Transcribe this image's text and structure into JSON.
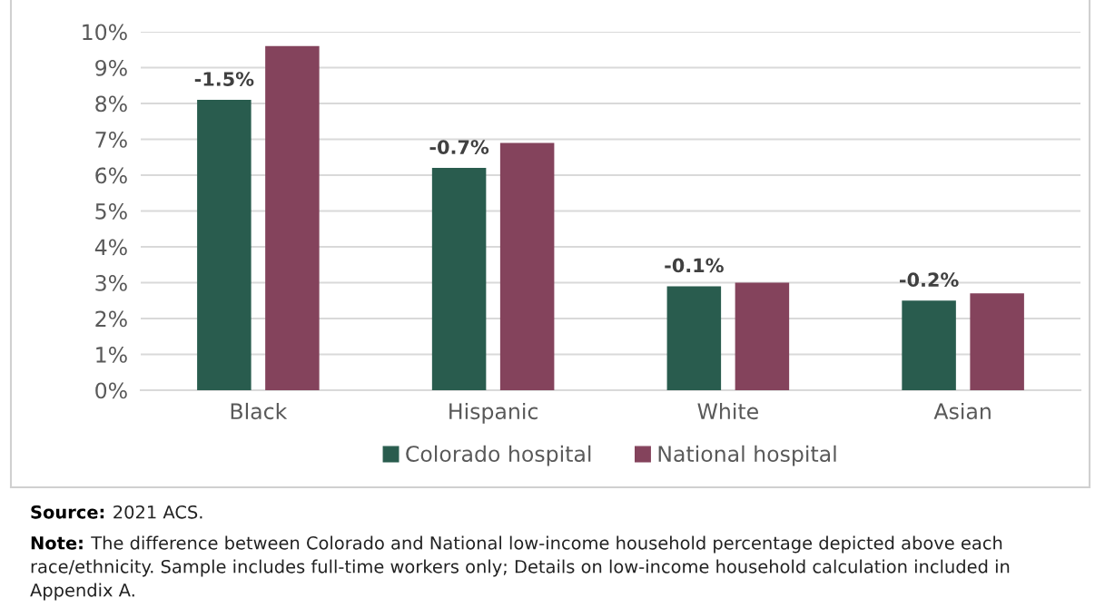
{
  "chart_data": {
    "type": "bar",
    "categories": [
      "Black",
      "Hispanic",
      "White",
      "Asian"
    ],
    "series": [
      {
        "name": "Colorado hospital",
        "color": "#295c4e",
        "values": [
          8.1,
          6.2,
          2.9,
          2.5
        ]
      },
      {
        "name": "National hospital",
        "color": "#84435c",
        "values": [
          9.6,
          6.9,
          3.0,
          2.7
        ]
      }
    ],
    "ylim": [
      0,
      10
    ],
    "yticks": [
      {
        "value": 0,
        "label": "0%"
      },
      {
        "value": 1,
        "label": "1%"
      },
      {
        "value": 2,
        "label": "2%"
      },
      {
        "value": 3,
        "label": "3%"
      },
      {
        "value": 4,
        "label": "4%"
      },
      {
        "value": 5,
        "label": "5%"
      },
      {
        "value": 6,
        "label": "6%"
      },
      {
        "value": 7,
        "label": "7%"
      },
      {
        "value": 8,
        "label": "8%"
      },
      {
        "value": 9,
        "label": "9%"
      },
      {
        "value": 10,
        "label": "10%"
      }
    ],
    "grid": "y",
    "legend": "bottom",
    "annotations": [
      "-1.5%",
      "-0.7%",
      "-0.1%",
      "-0.2%",
      "Source:  2021 ACS.",
      "Note: The difference between Colorado and National low-income household percentage depicted above each race/ethnicity. Sample includes full-time workers only; Details on low-income household calculation included in Appendix A."
    ]
  }
}
